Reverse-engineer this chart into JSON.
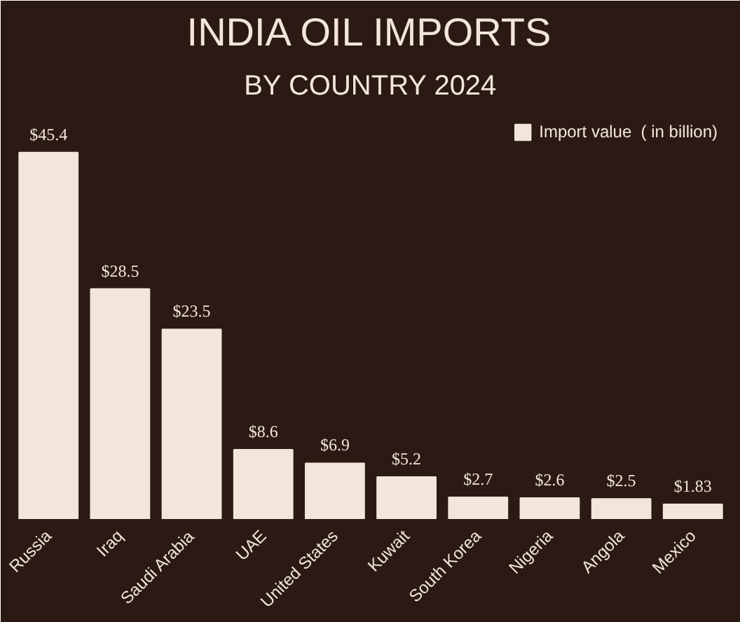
{
  "chart_data": {
    "type": "bar",
    "title": "INDIA OIL IMPORTS",
    "subtitle": "BY COUNTRY 2024",
    "categories": [
      "Russia",
      "Iraq",
      "Saudi Arabia",
      "UAE",
      "United States",
      "Kuwait",
      "South Korea",
      "Nigeria",
      "Angola",
      "Mexico"
    ],
    "series": [
      {
        "name": "Import value  ( in billion)",
        "color": "#f3e5da",
        "values": [
          45.4,
          28.5,
          23.5,
          8.6,
          6.9,
          5.2,
          2.7,
          2.6,
          2.5,
          1.83
        ],
        "value_labels": [
          "$45.4",
          "$28.5",
          "$23.5",
          "$8.6",
          "$6.9",
          "$5.2",
          "$2.7",
          "$2.6",
          "$2.5",
          "$1.83"
        ]
      }
    ],
    "legend": "top right",
    "grid": false
  }
}
